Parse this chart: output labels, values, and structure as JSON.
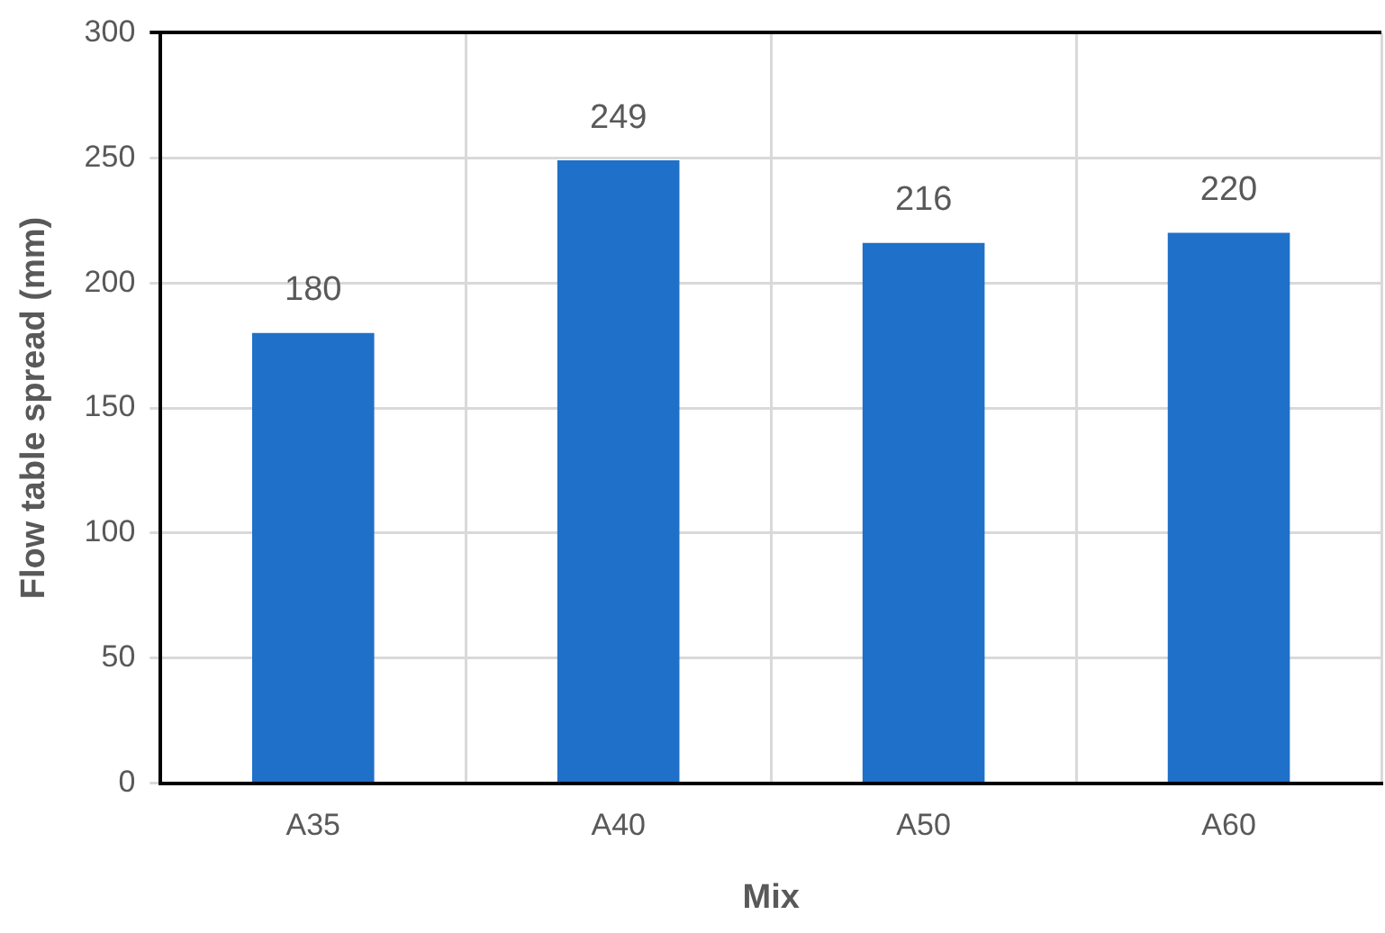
{
  "chart_data": {
    "type": "bar",
    "xlabel": "Mix",
    "ylabel": "Flow table spread (mm)",
    "categories": [
      "A35",
      "A40",
      "A50",
      "A60"
    ],
    "values": [
      180,
      249,
      216,
      220
    ],
    "color": "#1f70c8",
    "ylim": [
      0,
      300
    ],
    "yticks": [
      0,
      50,
      100,
      150,
      200,
      250,
      300
    ],
    "grid": true,
    "data_labels": true
  }
}
